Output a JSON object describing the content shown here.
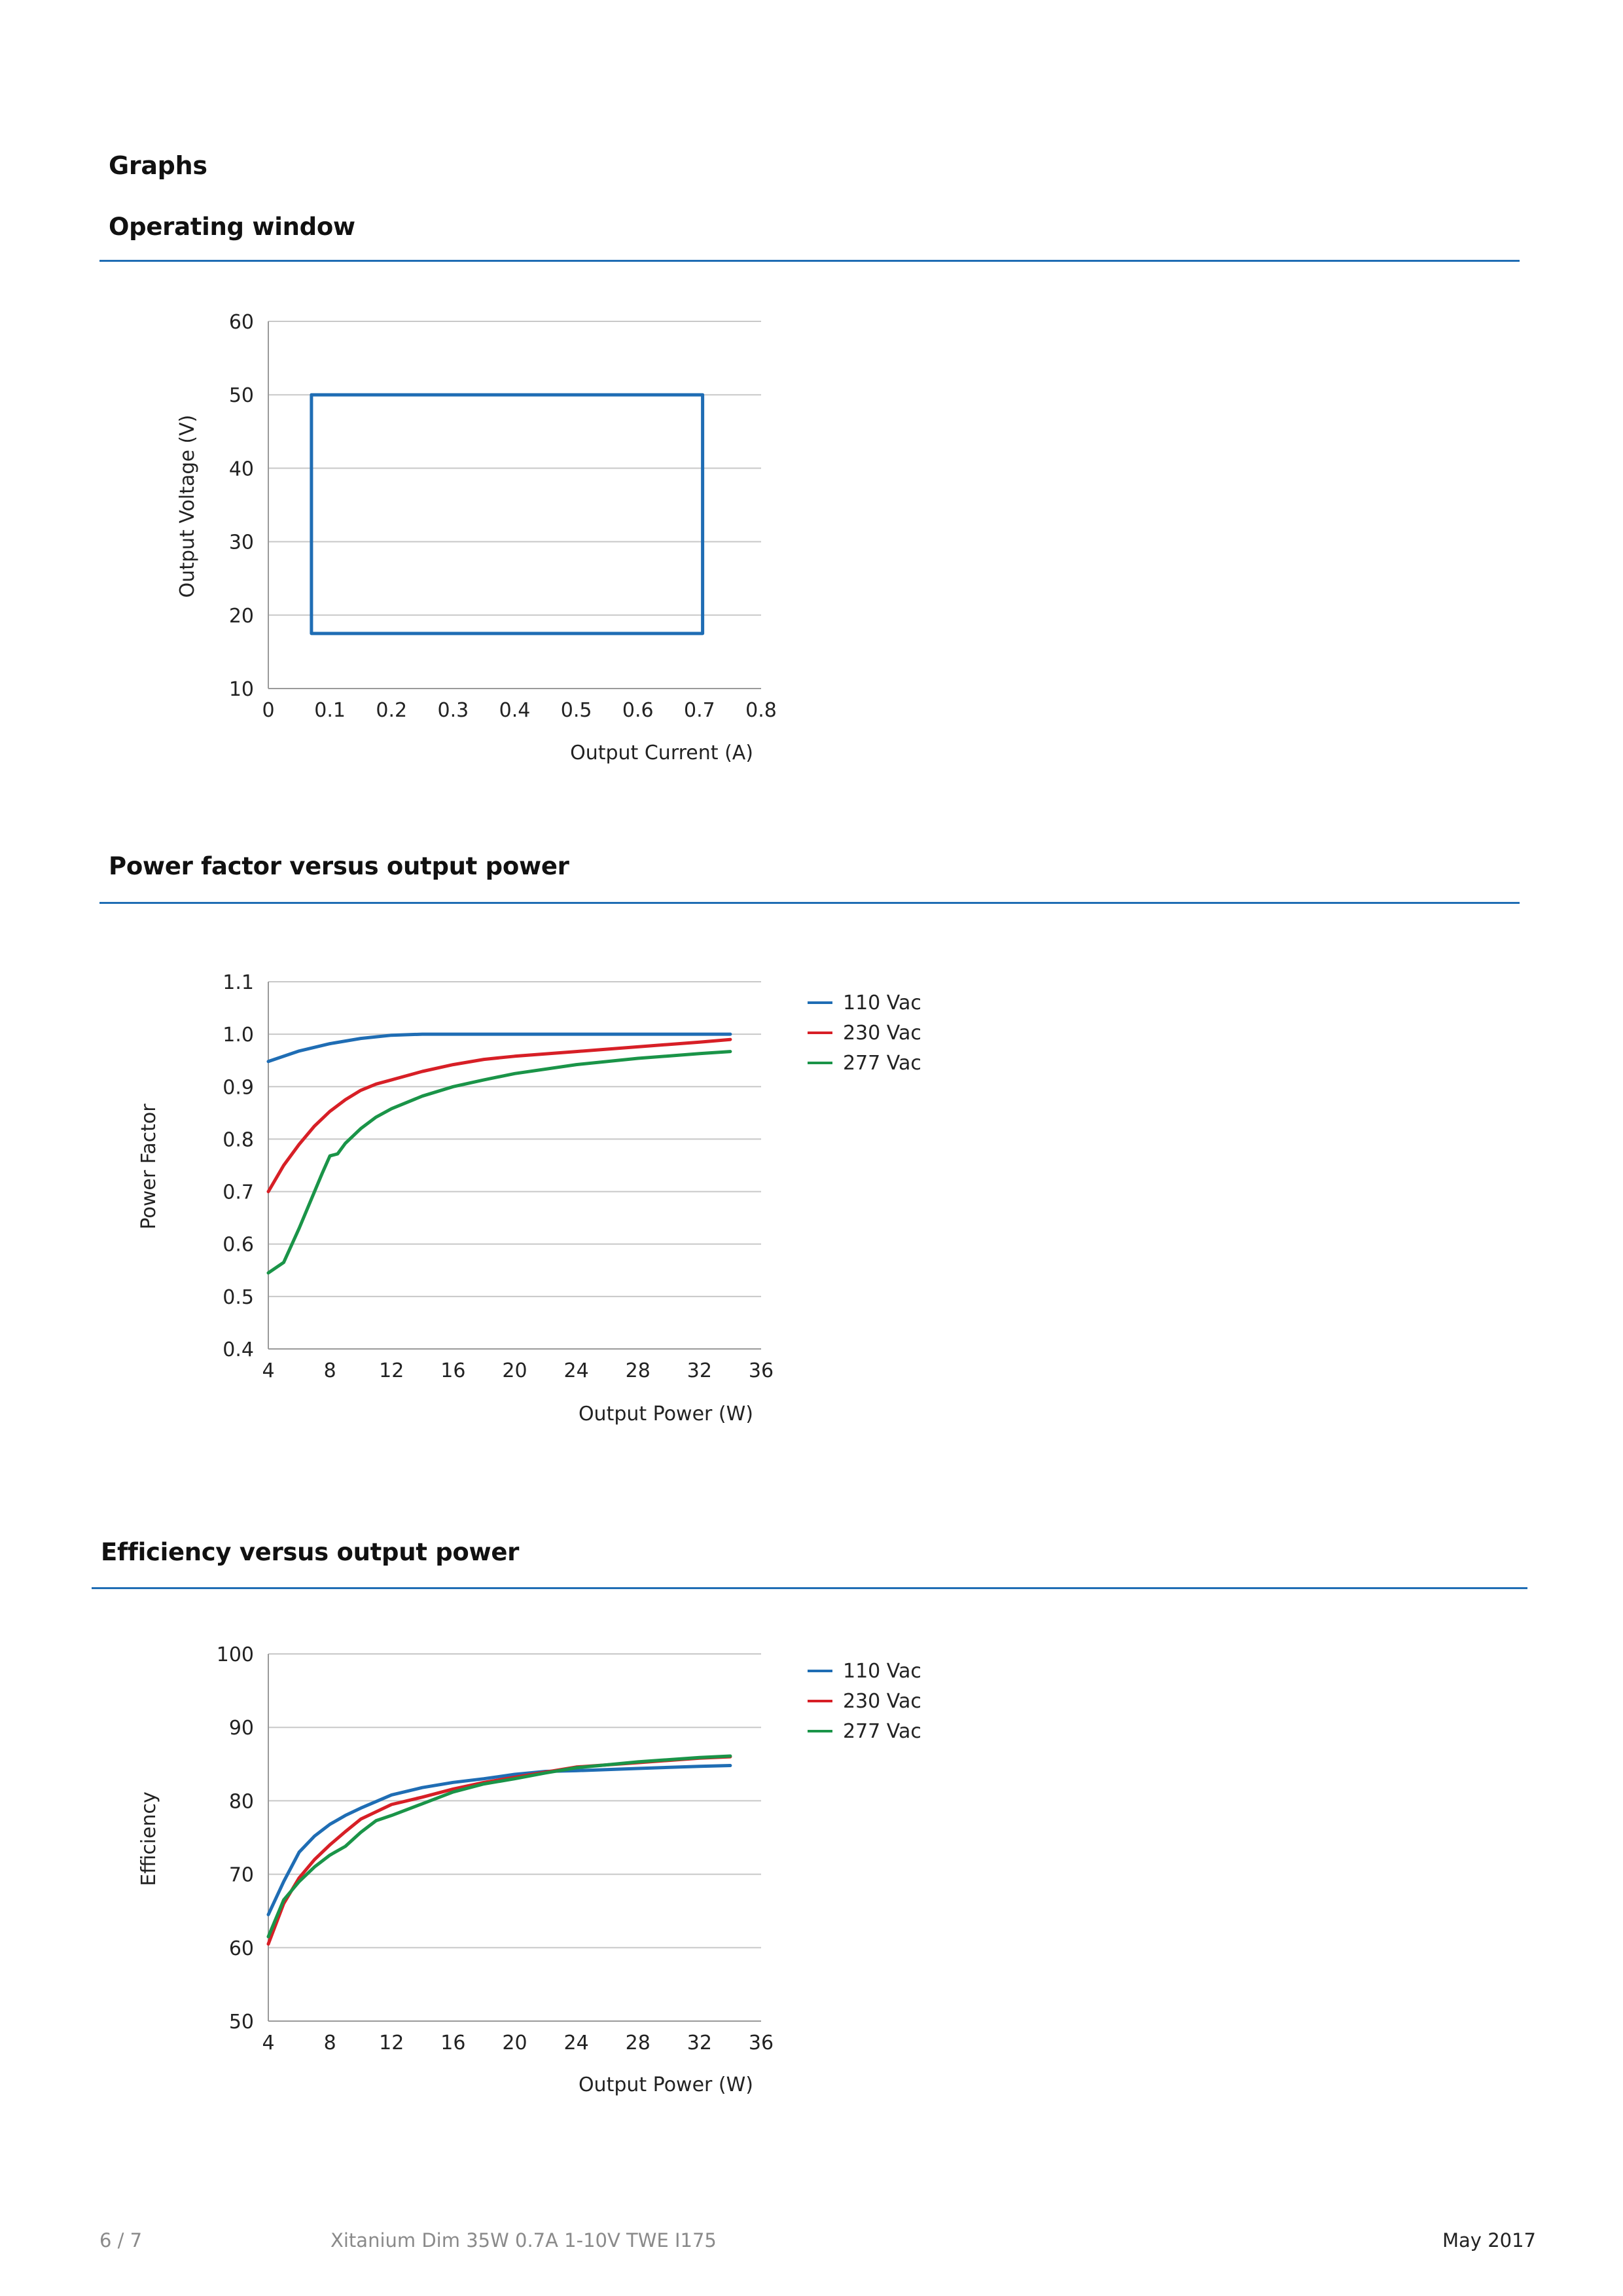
{
  "page": {
    "section_title": "Graphs",
    "footer": {
      "page_number": "6 / 7",
      "product": "Xitanium Dim 35W 0.7A 1-10V TWE I175",
      "date": "May 2017"
    }
  },
  "colors": {
    "accent_rule": "#1f6db4",
    "v110": "#1f6db4",
    "v230": "#d71f26",
    "v277": "#1a9448",
    "grid": "#c8c8c8"
  },
  "chart_data": [
    {
      "id": "operating",
      "heading": "Operating window",
      "type": "line",
      "xlabel": "Output Current (A)",
      "ylabel": "Output Voltage (V)",
      "xlim": [
        0,
        0.8
      ],
      "ylim": [
        10,
        60
      ],
      "xticks": [
        "0",
        "0.1",
        "0.2",
        "0.3",
        "0.4",
        "0.5",
        "0.6",
        "0.7",
        "0.8"
      ],
      "yticks": [
        "10",
        "20",
        "30",
        "40",
        "50",
        "60"
      ],
      "grid": true,
      "series": [
        {
          "color": "#1f6db4",
          "points": [
            [
              0.07,
              17.5
            ],
            [
              0.07,
              50
            ],
            [
              0.705,
              50
            ],
            [
              0.705,
              17.5
            ],
            [
              0.07,
              17.5
            ]
          ]
        }
      ]
    },
    {
      "id": "pf",
      "heading": "Power factor versus output power",
      "type": "line",
      "xlabel": "Output Power (W)",
      "ylabel": "Power Factor",
      "xlim": [
        4,
        36
      ],
      "ylim": [
        0.4,
        1.1
      ],
      "xticks": [
        "4",
        "8",
        "12",
        "16",
        "20",
        "24",
        "28",
        "32",
        "36"
      ],
      "yticks": [
        "0.4",
        "0.5",
        "0.6",
        "0.7",
        "0.8",
        "0.9",
        "1.0",
        "1.1"
      ],
      "grid": true,
      "legend": "right",
      "series": [
        {
          "name": "110  Vac",
          "color": "#1f6db4",
          "points": [
            [
              4,
              0.948
            ],
            [
              6,
              0.968
            ],
            [
              8,
              0.982
            ],
            [
              10,
              0.992
            ],
            [
              12,
              0.998
            ],
            [
              14,
              1.0
            ],
            [
              16,
              1.0
            ],
            [
              20,
              1.0
            ],
            [
              24,
              1.0
            ],
            [
              28,
              1.0
            ],
            [
              32,
              1.0
            ],
            [
              34,
              1.0
            ]
          ]
        },
        {
          "name": "230 Vac",
          "color": "#d71f26",
          "points": [
            [
              4,
              0.7
            ],
            [
              5,
              0.75
            ],
            [
              6,
              0.79
            ],
            [
              7,
              0.825
            ],
            [
              8,
              0.853
            ],
            [
              9,
              0.875
            ],
            [
              10,
              0.893
            ],
            [
              11,
              0.905
            ],
            [
              12,
              0.913
            ],
            [
              14,
              0.929
            ],
            [
              16,
              0.942
            ],
            [
              18,
              0.952
            ],
            [
              20,
              0.958
            ],
            [
              24,
              0.967
            ],
            [
              28,
              0.976
            ],
            [
              32,
              0.985
            ],
            [
              34,
              0.99
            ]
          ]
        },
        {
          "name": "277  Vac",
          "color": "#1a9448",
          "points": [
            [
              4,
              0.545
            ],
            [
              5,
              0.565
            ],
            [
              6,
              0.63
            ],
            [
              7,
              0.7
            ],
            [
              7.5,
              0.735
            ],
            [
              8,
              0.768
            ],
            [
              8.5,
              0.772
            ],
            [
              9,
              0.792
            ],
            [
              10,
              0.82
            ],
            [
              11,
              0.842
            ],
            [
              12,
              0.858
            ],
            [
              14,
              0.882
            ],
            [
              16,
              0.9
            ],
            [
              18,
              0.913
            ],
            [
              20,
              0.925
            ],
            [
              24,
              0.942
            ],
            [
              28,
              0.954
            ],
            [
              32,
              0.963
            ],
            [
              34,
              0.967
            ]
          ]
        }
      ]
    },
    {
      "id": "eff",
      "heading": "Efficiency versus output power",
      "type": "line",
      "xlabel": "Output Power (W)",
      "ylabel": "Efficiency",
      "xlim": [
        4,
        36
      ],
      "ylim": [
        50,
        100
      ],
      "xticks": [
        "4",
        "8",
        "12",
        "16",
        "20",
        "24",
        "28",
        "32",
        "36"
      ],
      "yticks": [
        "50",
        "60",
        "70",
        "80",
        "90",
        "100"
      ],
      "grid": true,
      "legend": "right",
      "series": [
        {
          "name": "110  Vac",
          "color": "#1f6db4",
          "points": [
            [
              4,
              64.5
            ],
            [
              5,
              69
            ],
            [
              6,
              73
            ],
            [
              7,
              75.2
            ],
            [
              8,
              76.8
            ],
            [
              9,
              78
            ],
            [
              10,
              79
            ],
            [
              12,
              80.8
            ],
            [
              14,
              81.8
            ],
            [
              16,
              82.5
            ],
            [
              18,
              83
            ],
            [
              20,
              83.6
            ],
            [
              22,
              84
            ],
            [
              24,
              84.1
            ],
            [
              28,
              84.4
            ],
            [
              32,
              84.7
            ],
            [
              34,
              84.8
            ]
          ]
        },
        {
          "name": "230 Vac",
          "color": "#d71f26",
          "points": [
            [
              4,
              60.5
            ],
            [
              5,
              66
            ],
            [
              6,
              69.5
            ],
            [
              7,
              72
            ],
            [
              8,
              74
            ],
            [
              9,
              75.8
            ],
            [
              10,
              77.5
            ],
            [
              12,
              79.5
            ],
            [
              14,
              80.5
            ],
            [
              16,
              81.6
            ],
            [
              18,
              82.5
            ],
            [
              20,
              83.2
            ],
            [
              22,
              83.9
            ],
            [
              24,
              84.6
            ],
            [
              28,
              85.2
            ],
            [
              32,
              85.8
            ],
            [
              34,
              86
            ]
          ]
        },
        {
          "name": "277 Vac",
          "color": "#1a9448",
          "points": [
            [
              4,
              61.5
            ],
            [
              5,
              66.5
            ],
            [
              6,
              69
            ],
            [
              7,
              71
            ],
            [
              8,
              72.6
            ],
            [
              9,
              73.8
            ],
            [
              10,
              75.7
            ],
            [
              11,
              77.3
            ],
            [
              12,
              78
            ],
            [
              14,
              79.6
            ],
            [
              16,
              81.2
            ],
            [
              18,
              82.3
            ],
            [
              20,
              83
            ],
            [
              22,
              83.8
            ],
            [
              24,
              84.5
            ],
            [
              28,
              85.3
            ],
            [
              32,
              85.9
            ],
            [
              34,
              86.1
            ]
          ]
        }
      ]
    }
  ]
}
